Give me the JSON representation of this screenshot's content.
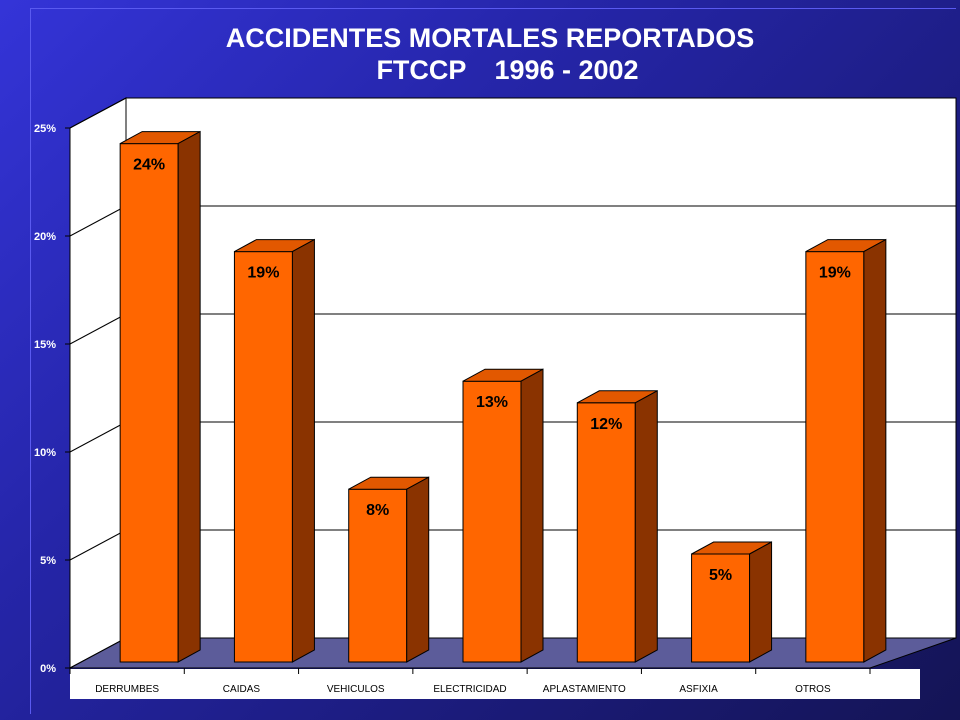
{
  "title": {
    "line1": "ACCIDENTES MORTALES REPORTADOS",
    "line2_a": "FTCCP",
    "line2_b": "1996 - 2002"
  },
  "colors": {
    "bar_front": "#ff6600",
    "bar_top": "#e25800",
    "bar_side": "#8a3300",
    "floor": "#5c5c9a",
    "plot_bg": "#ffffff",
    "background": "#2525a8"
  },
  "chart_data": {
    "type": "bar",
    "title": "ACCIDENTES MORTALES REPORTADOS FTCCP 1996 - 2002",
    "categories": [
      "DERRUMBES",
      "CAIDAS",
      "VEHICULOS",
      "ELECTRICIDAD",
      "APLASTAMIENTO",
      "ASFIXIA",
      "OTROS"
    ],
    "values": [
      24,
      19,
      8,
      13,
      12,
      5,
      19
    ],
    "data_labels": [
      "24%",
      "19%",
      "8%",
      "13%",
      "12%",
      "5%",
      "19%"
    ],
    "y_ticks": [
      "0%",
      "5%",
      "10%",
      "15%",
      "20%",
      "25%"
    ],
    "ylim": [
      0,
      25
    ],
    "grid": true,
    "three_d": true
  }
}
